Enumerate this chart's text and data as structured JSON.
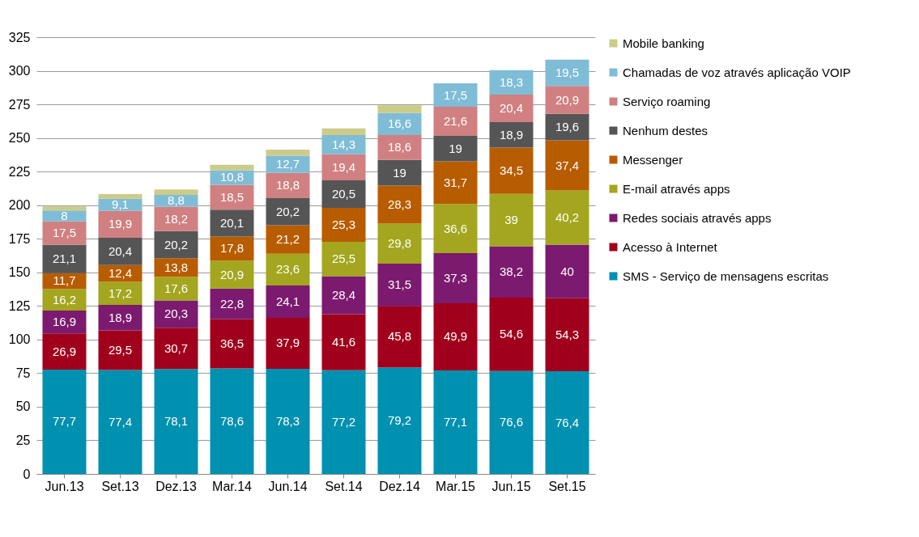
{
  "chart_data": {
    "type": "bar",
    "stacked": true,
    "categories": [
      "Jun.13",
      "Set.13",
      "Dez.13",
      "Mar.14",
      "Jun.14",
      "Set.14",
      "Dez.14",
      "Mar.15",
      "Jun.15",
      "Set.15"
    ],
    "series": [
      {
        "name": "SMS - Serviço de mensagens escritas",
        "color": "#0090b0",
        "values": [
          77.7,
          77.4,
          78.1,
          78.6,
          78.3,
          77.2,
          79.2,
          77.1,
          76.6,
          76.4
        ],
        "value_labels": [
          "77,7",
          "77,4",
          "78,1",
          "78,6",
          "78,3",
          "77,2",
          "79,2",
          "77,1",
          "76,6",
          "76,4"
        ]
      },
      {
        "name": "Acesso à Internet",
        "color": "#a0001c",
        "values": [
          26.9,
          29.5,
          30.7,
          36.5,
          37.9,
          41.6,
          45.8,
          49.9,
          54.6,
          54.3
        ],
        "value_labels": [
          "26,9",
          "29,5",
          "30,7",
          "36,5",
          "37,9",
          "41,6",
          "45,8",
          "49,9",
          "54,6",
          "54,3"
        ]
      },
      {
        "name": "Redes sociais através apps",
        "color": "#7b1a6e",
        "values": [
          16.9,
          18.9,
          20.3,
          22.8,
          24.1,
          28.4,
          31.5,
          37.3,
          38.2,
          40
        ],
        "value_labels": [
          "16,9",
          "18,9",
          "20,3",
          "22,8",
          "24,1",
          "28,4",
          "31,5",
          "37,3",
          "38,2",
          "40"
        ]
      },
      {
        "name": "E-mail através apps",
        "color": "#a3a61e",
        "values": [
          16.2,
          17.2,
          17.6,
          20.9,
          23.6,
          25.5,
          29.8,
          36.6,
          39,
          40.2
        ],
        "value_labels": [
          "16,2",
          "17,2",
          "17,6",
          "20,9",
          "23,6",
          "25,5",
          "29,8",
          "36,6",
          "39",
          "40,2"
        ]
      },
      {
        "name": "Messenger",
        "color": "#b85c00",
        "values": [
          11.7,
          12.4,
          13.8,
          17.8,
          21.2,
          25.3,
          28.3,
          31.7,
          34.5,
          37.4
        ],
        "value_labels": [
          "11,7",
          "12,4",
          "13,8",
          "17,8",
          "21,2",
          "25,3",
          "28,3",
          "31,7",
          "34,5",
          "37,4"
        ]
      },
      {
        "name": "Nenhum destes",
        "color": "#555555",
        "values": [
          21.1,
          20.4,
          20.2,
          20.1,
          20.2,
          20.5,
          19,
          19,
          18.9,
          19.6
        ],
        "value_labels": [
          "21,1",
          "20,4",
          "20,2",
          "20,1",
          "20,2",
          "20,5",
          "19",
          "19",
          "18,9",
          "19,6"
        ]
      },
      {
        "name": "Serviço roaming",
        "color": "#d08080",
        "values": [
          17.5,
          19.9,
          18.2,
          18.5,
          18.8,
          19.4,
          18.6,
          21.6,
          20.4,
          20.9
        ],
        "value_labels": [
          "17,5",
          "19,9",
          "18,2",
          "18,5",
          "18,8",
          "19,4",
          "18,6",
          "21,6",
          "20,4",
          "20,9"
        ]
      },
      {
        "name": "Chamadas de voz através aplicação VOIP",
        "color": "#7fbcd6",
        "values": [
          8,
          9.1,
          8.8,
          10.8,
          12.7,
          14.3,
          16.6,
          17.5,
          18.3,
          19.5
        ],
        "value_labels": [
          "8",
          "9,1",
          "8,8",
          "10,8",
          "12,7",
          "14,3",
          "16,6",
          "17,5",
          "18,3",
          "19,5"
        ]
      },
      {
        "name": "Mobile banking",
        "color": "#cccc88",
        "values": [
          3,
          3.5,
          4,
          4,
          4.5,
          5,
          5.5,
          null,
          null,
          null
        ]
      }
    ],
    "ylim": [
      0,
      325
    ],
    "yticks": [
      0,
      25,
      50,
      75,
      100,
      125,
      150,
      175,
      200,
      225,
      250,
      275,
      300,
      325
    ],
    "grid": "y",
    "legend": "right"
  }
}
